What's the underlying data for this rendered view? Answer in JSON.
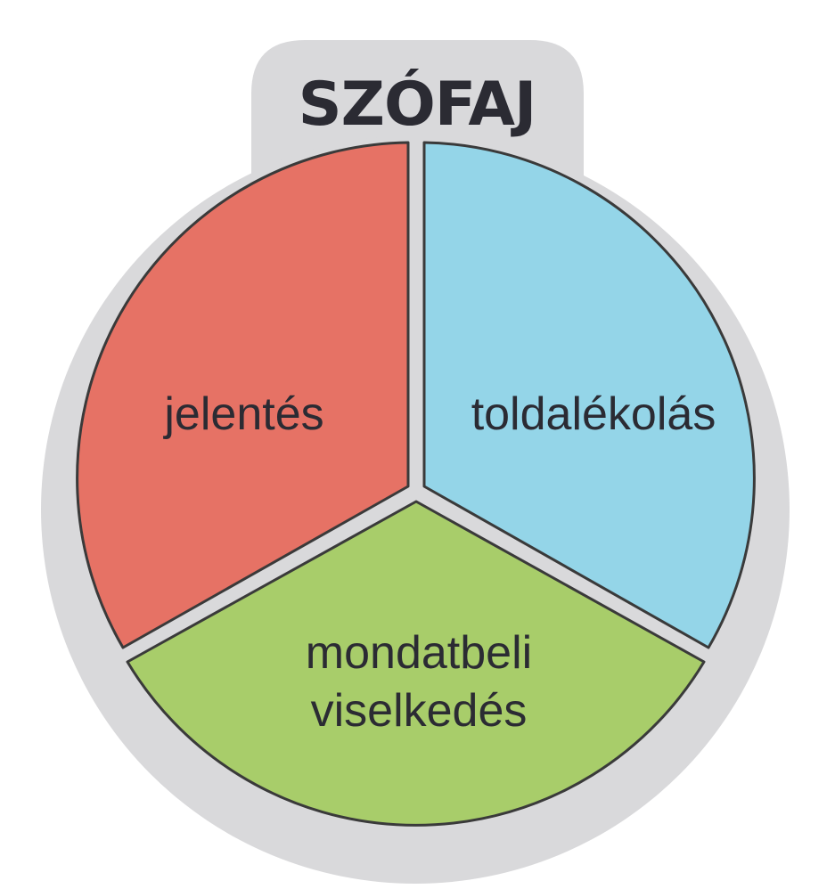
{
  "diagram": {
    "title": "SZÓFAJ",
    "segments": [
      {
        "label": "jelentés",
        "color": "#e67265"
      },
      {
        "label": "toldalékolás",
        "color": "#94d5e8"
      },
      {
        "label_line1": "mondatbeli",
        "label_line2": "viselkedés",
        "color": "#a8cd6a"
      }
    ],
    "frame_color": "#d9d9db",
    "outline_color": "#3a3a3a"
  }
}
